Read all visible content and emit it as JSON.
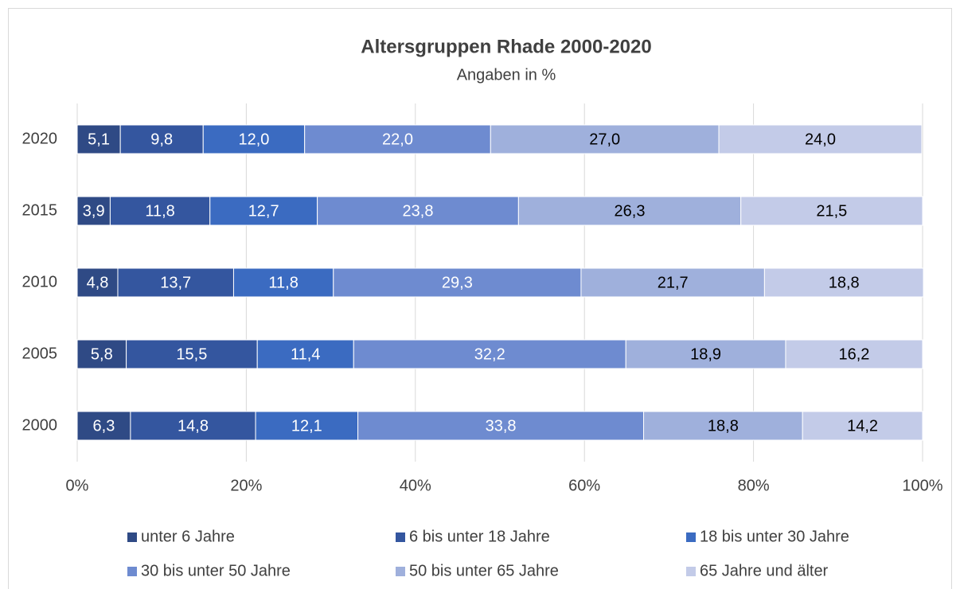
{
  "chart_data": {
    "type": "stacked_barh",
    "title": "Altersgruppen Rhade 2000-2020",
    "subtitle": "Angaben in %",
    "categories": [
      "2000",
      "2005",
      "2010",
      "2015",
      "2020"
    ],
    "series": [
      {
        "name": "unter 6 Jahre",
        "color": "#2f4a85",
        "label_color": "#ffffff",
        "values": [
          6.3,
          5.8,
          4.8,
          3.9,
          5.1
        ],
        "value_labels": [
          "6,3",
          "5,8",
          "4,8",
          "3,9",
          "5,1"
        ]
      },
      {
        "name": "6 bis unter 18 Jahre",
        "color": "#34569f",
        "label_color": "#ffffff",
        "values": [
          14.8,
          15.5,
          13.7,
          11.8,
          9.8
        ],
        "value_labels": [
          "14,8",
          "15,5",
          "13,7",
          "11,8",
          "9,8"
        ]
      },
      {
        "name": "18 bis unter 30 Jahre",
        "color": "#3b6bc1",
        "label_color": "#ffffff",
        "values": [
          12.1,
          11.4,
          11.8,
          12.7,
          12.0
        ],
        "value_labels": [
          "12,1",
          "11,4",
          "11,8",
          "12,7",
          "12,0"
        ]
      },
      {
        "name": "30 bis unter 50 Jahre",
        "color": "#6e8bd0",
        "label_color": "#ffffff",
        "values": [
          33.8,
          32.2,
          29.3,
          23.8,
          22.0
        ],
        "value_labels": [
          "33,8",
          "32,2",
          "29,3",
          "23,8",
          "22,0"
        ]
      },
      {
        "name": "50 bis unter 65 Jahre",
        "color": "#9fb0dc",
        "label_color": "#000000",
        "values": [
          18.8,
          18.9,
          21.7,
          26.3,
          27.0
        ],
        "value_labels": [
          "18,8",
          "18,9",
          "21,7",
          "26,3",
          "27,0"
        ]
      },
      {
        "name": "65 Jahre und älter",
        "color": "#c3cbe8",
        "label_color": "#000000",
        "values": [
          14.2,
          16.2,
          18.8,
          21.5,
          24.0
        ],
        "value_labels": [
          "14,2",
          "16,2",
          "18,8",
          "21,5",
          "24,0"
        ]
      }
    ],
    "xlim": [
      0,
      100
    ],
    "xticks": [
      {
        "value": 0,
        "label": "0%"
      },
      {
        "value": 20,
        "label": "20%"
      },
      {
        "value": 40,
        "label": "40%"
      },
      {
        "value": 60,
        "label": "60%"
      },
      {
        "value": 80,
        "label": "80%"
      },
      {
        "value": 100,
        "label": "100%"
      }
    ],
    "grid": true,
    "legend": "bottom"
  }
}
